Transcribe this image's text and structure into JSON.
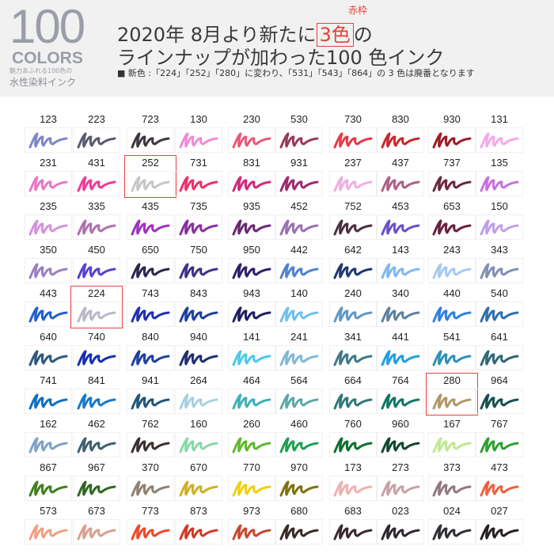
{
  "header": {
    "big_number": "100",
    "colors_label": "COLORS",
    "tagline_small": "魅力あふれる100色の",
    "tagline": "水性染料インク",
    "title_line1_pre": "2020年 8月より新たに",
    "title_highlight": "3色",
    "title_line1_post": "の",
    "highlight_caption": "赤枠",
    "title_line2": "ラインナップが加わった100 色インク",
    "note": "■ 新色 :「224」「252」「280」に変わり、「531」「543」「864」の 3 色は廃番となります"
  },
  "accent_color": "#e84040",
  "inks": [
    [
      [
        "123",
        "#7f86c8"
      ],
      [
        "223",
        "#5a5a70"
      ],
      [
        "723",
        "#3e3640"
      ],
      [
        "130",
        "#f08ad8"
      ],
      [
        "230",
        "#e85a78"
      ],
      [
        "530",
        "#9a3a5a"
      ],
      [
        "730",
        "#e63a4a"
      ],
      [
        "830",
        "#c8282e"
      ],
      [
        "930",
        "#9a1e28"
      ],
      [
        "131",
        "#f4a8e8"
      ]
    ],
    [
      [
        "231",
        "#e878c8"
      ],
      [
        "431",
        "#f03a9a"
      ],
      [
        "252",
        "#c8c4c8",
        true
      ],
      [
        "731",
        "#f0306a"
      ],
      [
        "831",
        "#d02a78"
      ],
      [
        "931",
        "#a02870"
      ],
      [
        "237",
        "#f0b0e0"
      ],
      [
        "437",
        "#b06088"
      ],
      [
        "737",
        "#6a2a40"
      ],
      [
        "135",
        "#c870e0"
      ]
    ],
    [
      [
        "235",
        "#d890e0"
      ],
      [
        "335",
        "#b070b0"
      ],
      [
        "435",
        "#a030c0"
      ],
      [
        "735",
        "#8a30a0"
      ],
      [
        "935",
        "#6a2a70"
      ],
      [
        "452",
        "#9a70b0"
      ],
      [
        "752",
        "#4a3040"
      ],
      [
        "453",
        "#6a50c8"
      ],
      [
        "653",
        "#6a2040"
      ],
      [
        "150",
        "#c0a0e8"
      ]
    ],
    [
      [
        "350",
        "#9a80c0"
      ],
      [
        "450",
        "#5a40d0"
      ],
      [
        "650",
        "#2a2850"
      ],
      [
        "750",
        "#40308a"
      ],
      [
        "950",
        "#30206a"
      ],
      [
        "442",
        "#5080d0"
      ],
      [
        "642",
        "#203870"
      ],
      [
        "143",
        "#80b8f0"
      ],
      [
        "243",
        "#a8c8f0"
      ],
      [
        "343",
        "#8090b0"
      ]
    ],
    [
      [
        "443",
        "#2060d0"
      ],
      [
        "224",
        "#b8b8c8",
        true
      ],
      [
        "743",
        "#2030b0"
      ],
      [
        "843",
        "#2040a0"
      ],
      [
        "943",
        "#202060"
      ],
      [
        "140",
        "#70c0f0"
      ],
      [
        "240",
        "#6098c8"
      ],
      [
        "340",
        "#6080a0"
      ],
      [
        "440",
        "#3080e0"
      ],
      [
        "540",
        "#3070b0"
      ]
    ],
    [
      [
        "640",
        "#305880"
      ],
      [
        "740",
        "#1830b0"
      ],
      [
        "840",
        "#2040a0"
      ],
      [
        "940",
        "#203070"
      ],
      [
        "141",
        "#50c8e8"
      ],
      [
        "241",
        "#80b8d8"
      ],
      [
        "341",
        "#407888"
      ],
      [
        "441",
        "#20a0e0"
      ],
      [
        "541",
        "#3090b8"
      ],
      [
        "641",
        "#306878"
      ]
    ],
    [
      [
        "741",
        "#1070c0"
      ],
      [
        "841",
        "#1878c8"
      ],
      [
        "941",
        "#205878"
      ],
      [
        "264",
        "#a8d0e0"
      ],
      [
        "464",
        "#40b0b8"
      ],
      [
        "564",
        "#60a8a8"
      ],
      [
        "664",
        "#307878"
      ],
      [
        "764",
        "#107868"
      ],
      [
        "280",
        "#b09868",
        true
      ],
      [
        "964",
        "#185050"
      ]
    ],
    [
      [
        "162",
        "#80a0c8"
      ],
      [
        "462",
        "#406070"
      ],
      [
        "762",
        "#3a3030"
      ],
      [
        "160",
        "#88d8a8"
      ],
      [
        "260",
        "#60b830"
      ],
      [
        "460",
        "#20a050"
      ],
      [
        "760",
        "#107030"
      ],
      [
        "960",
        "#104830"
      ],
      [
        "167",
        "#c0e890"
      ],
      [
        "767",
        "#30a030"
      ]
    ],
    [
      [
        "867",
        "#408020"
      ],
      [
        "967",
        "#306820"
      ],
      [
        "370",
        "#908070"
      ],
      [
        "670",
        "#d0b020"
      ],
      [
        "770",
        "#f0d010"
      ],
      [
        "970",
        "#807010"
      ],
      [
        "173",
        "#f0b0b0"
      ],
      [
        "273",
        "#c8a0a8"
      ],
      [
        "373",
        "#907880"
      ],
      [
        "473",
        "#f06040"
      ]
    ],
    [
      [
        "573",
        "#f0a080"
      ],
      [
        "673",
        "#d8a090"
      ],
      [
        "773",
        "#f04828"
      ],
      [
        "873",
        "#d03a28"
      ],
      [
        "973",
        "#c84830"
      ],
      [
        "680",
        "#3a2a28"
      ],
      [
        "683",
        "#3a2a30"
      ],
      [
        "023",
        "#302830"
      ],
      [
        "024",
        "#303038"
      ],
      [
        "027",
        "#282020"
      ]
    ]
  ]
}
